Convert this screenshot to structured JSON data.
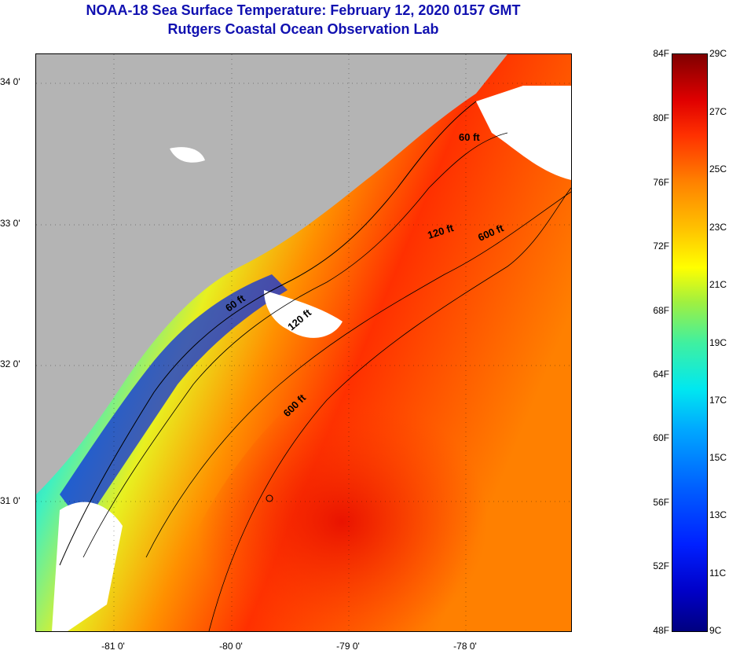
{
  "title": {
    "line1": "NOAA-18 Sea Surface Temperature:  February 12, 2020 0157 GMT",
    "line2": "Rutgers Coastal Ocean Observation Lab"
  },
  "map": {
    "lat_labels": [
      "34 0'",
      "33 0'",
      "32 0'",
      "31 0'"
    ],
    "lon_labels": [
      "-81 0'",
      "-80 0'",
      "-79 0'",
      "-78 0'"
    ],
    "contour_labels": [
      "60 ft",
      "120 ft",
      "600 ft",
      "60 ft",
      "120 ft",
      "600 ft"
    ],
    "land_color": "#b4b4b4",
    "cloud_color": "#ffffff"
  },
  "colorbar": {
    "fahrenheit_labels": [
      "84F",
      "80F",
      "76F",
      "72F",
      "68F",
      "64F",
      "60F",
      "56F",
      "52F",
      "48F"
    ],
    "celsius_labels": [
      "29C",
      "27C",
      "25C",
      "23C",
      "21C",
      "19C",
      "17C",
      "15C",
      "13C",
      "11C",
      "9C"
    ],
    "range_f": [
      48,
      84
    ],
    "range_c": [
      9,
      29
    ]
  }
}
